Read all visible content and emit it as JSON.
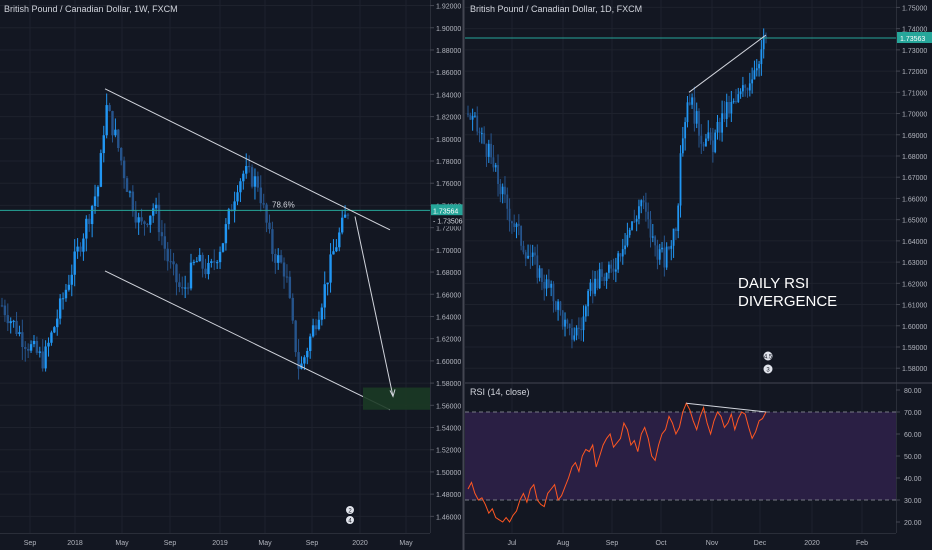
{
  "colors": {
    "background": "#131722",
    "grid": "#1e222d",
    "bull": "#2196f3",
    "bear": "#26548c",
    "hline": "#26a69a",
    "price_tag": "#26a69a",
    "trendline": "#d1d4dc",
    "target_box": "#1b3a25",
    "rsi_line": "#ff5722",
    "rsi_band": "#2a1f44",
    "divider": "#434651"
  },
  "chart_data": [
    {
      "type": "candlestick",
      "title": "British Pound / Canadian Dollar, 1W, FXCM",
      "y_ticks": [
        "1.92000",
        "1.90000",
        "1.88000",
        "1.86000",
        "1.84000",
        "1.82000",
        "1.80000",
        "1.78000",
        "1.76000",
        "1.74000",
        "1.72000",
        "1.70000",
        "1.68000",
        "1.66000",
        "1.64000",
        "1.62000",
        "1.60000",
        "1.58000",
        "1.56000",
        "1.54000",
        "1.52000",
        "1.50000",
        "1.48000",
        "1.46000"
      ],
      "ylim": [
        1.445,
        1.925
      ],
      "x_ticks": [
        "Sep",
        "2018",
        "May",
        "Sep",
        "2019",
        "May",
        "Sep",
        "2020",
        "May"
      ],
      "close_path": [
        [
          0,
          1.65
        ],
        [
          6,
          1.62
        ],
        [
          12,
          1.6
        ],
        [
          16,
          1.64
        ],
        [
          22,
          1.7
        ],
        [
          28,
          1.76
        ],
        [
          30,
          1.83
        ],
        [
          33,
          1.8
        ],
        [
          36,
          1.76
        ],
        [
          40,
          1.72
        ],
        [
          44,
          1.74
        ],
        [
          48,
          1.69
        ],
        [
          52,
          1.66
        ],
        [
          56,
          1.69
        ],
        [
          60,
          1.68
        ],
        [
          64,
          1.71
        ],
        [
          68,
          1.76
        ],
        [
          70,
          1.77
        ],
        [
          74,
          1.76
        ],
        [
          78,
          1.7
        ],
        [
          82,
          1.68
        ],
        [
          84,
          1.63
        ],
        [
          86,
          1.59
        ],
        [
          88,
          1.61
        ],
        [
          92,
          1.65
        ],
        [
          96,
          1.7
        ],
        [
          100,
          1.736
        ]
      ],
      "candle_count": 120,
      "last_price": "1.73564",
      "tag_price_2": "1.73506",
      "fib_label": "78.6%",
      "hline_price": 1.7356,
      "upper_channel": [
        [
          "2018-02",
          1.845
        ],
        [
          "2020-01",
          1.718
        ]
      ],
      "lower_channel": [
        [
          "2018-02",
          1.681
        ],
        [
          "2020-01",
          1.556
        ]
      ],
      "projection": [
        [
          "2019-12",
          1.73
        ],
        [
          "2020-01",
          1.568
        ]
      ],
      "target_zone": [
        1.556,
        1.576
      ],
      "event_badges": [
        "2",
        "4"
      ]
    },
    {
      "type": "candlestick",
      "title": "British Pound / Canadian Dollar, 1D, FXCM",
      "y_ticks": [
        "1.75000",
        "1.74000",
        "1.73000",
        "1.72000",
        "1.71000",
        "1.70000",
        "1.69000",
        "1.68000",
        "1.67000",
        "1.66000",
        "1.65000",
        "1.64000",
        "1.63000",
        "1.62000",
        "1.61000",
        "1.60000",
        "1.59000",
        "1.58000"
      ],
      "ylim": [
        1.5735,
        1.7535
      ],
      "x_ticks": [
        "Jul",
        "Aug",
        "Sep",
        "Oct",
        "Nov",
        "Dec",
        "2020",
        "Feb"
      ],
      "close_path": [
        [
          0,
          1.7
        ],
        [
          6,
          1.685
        ],
        [
          12,
          1.66
        ],
        [
          18,
          1.64
        ],
        [
          24,
          1.625
        ],
        [
          30,
          1.61
        ],
        [
          34,
          1.595
        ],
        [
          38,
          1.6
        ],
        [
          42,
          1.62
        ],
        [
          48,
          1.625
        ],
        [
          52,
          1.64
        ],
        [
          56,
          1.65
        ],
        [
          58,
          1.66
        ],
        [
          62,
          1.64
        ],
        [
          66,
          1.63
        ],
        [
          70,
          1.65
        ],
        [
          72,
          1.69
        ],
        [
          74,
          1.71
        ],
        [
          78,
          1.69
        ],
        [
          82,
          1.685
        ],
        [
          86,
          1.7
        ],
        [
          90,
          1.705
        ],
        [
          94,
          1.715
        ],
        [
          97,
          1.725
        ],
        [
          100,
          1.736
        ]
      ],
      "candle_count": 130,
      "last_price": "1.73563",
      "hline_price": 1.7356,
      "trendline": [
        [
          "2019-10-21",
          1.71
        ],
        [
          "2019-12-13",
          1.737
        ]
      ],
      "annotation": [
        "DAILY RSI",
        "DIVERGENCE"
      ],
      "event_badges": [
        "4.5",
        "3"
      ]
    },
    {
      "type": "line",
      "title": "RSI (14, close)",
      "y_ticks": [
        "80.00",
        "70.00",
        "60.00",
        "50.00",
        "40.00",
        "30.00",
        "20.00"
      ],
      "ylim": [
        15,
        80
      ],
      "band": [
        30,
        70
      ],
      "values": [
        35,
        38,
        33,
        30,
        31,
        28,
        24,
        26,
        22,
        21,
        20,
        22,
        20,
        23,
        25,
        30,
        33,
        29,
        35,
        37,
        30,
        28,
        27,
        33,
        35,
        37,
        30,
        32,
        36,
        40,
        45,
        47,
        43,
        50,
        53,
        52,
        55,
        45,
        50,
        55,
        58,
        60,
        54,
        56,
        58,
        65,
        62,
        55,
        57,
        52,
        60,
        63,
        58,
        50,
        48,
        55,
        60,
        62,
        68,
        65,
        60,
        63,
        70,
        74,
        71,
        66,
        62,
        68,
        72,
        65,
        60,
        66,
        70,
        68,
        63,
        65,
        69,
        62,
        67,
        70,
        69,
        63,
        58,
        61,
        66,
        67,
        70
      ],
      "divergence_line": [
        [
          63,
          74
        ],
        [
          86,
          70
        ]
      ]
    }
  ]
}
